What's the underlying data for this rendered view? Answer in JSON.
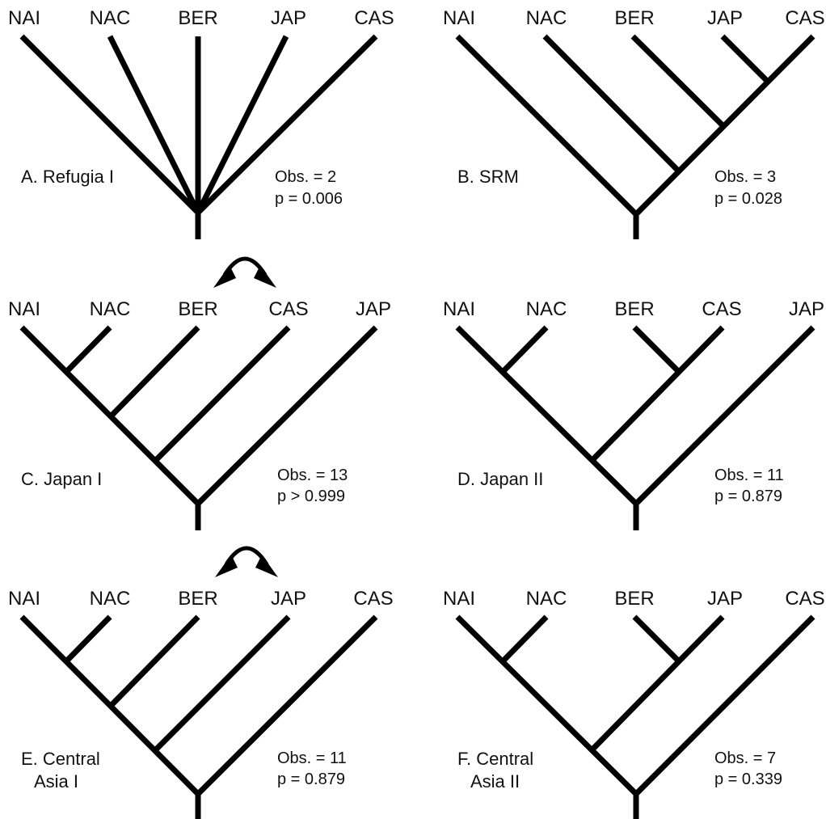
{
  "panels": [
    {
      "id": "A",
      "title_lines": [
        "A. Refugia I"
      ],
      "tips": [
        "NAI",
        "NAC",
        "BER",
        "JAP",
        "CAS"
      ],
      "topology": "star",
      "stats": {
        "obs": "Obs. = 2",
        "p": "p = 0.006"
      },
      "swap_arrow": false
    },
    {
      "id": "B",
      "title_lines": [
        "B. SRM"
      ],
      "tips": [
        "NAI",
        "NAC",
        "BER",
        "JAP",
        "CAS"
      ],
      "topology": "((((JAP,CAS),BER),NAC),NAI)",
      "stats": {
        "obs": "Obs. = 3",
        "p": "p = 0.028"
      },
      "swap_arrow": false
    },
    {
      "id": "C",
      "title_lines": [
        "C. Japan I"
      ],
      "tips": [
        "NAI",
        "NAC",
        "BER",
        "CAS",
        "JAP"
      ],
      "topology": "((((NAI,NAC),BER),CAS),JAP)",
      "stats": {
        "obs": "Obs. = 13",
        "p": "p > 0.999"
      },
      "swap_arrow": true
    },
    {
      "id": "D",
      "title_lines": [
        "D. Japan II"
      ],
      "tips": [
        "NAI",
        "NAC",
        "BER",
        "CAS",
        "JAP"
      ],
      "topology": "(((NAI,NAC),(BER,CAS)),JAP)",
      "stats": {
        "obs": "Obs. = 11",
        "p": "p = 0.879"
      },
      "swap_arrow": false
    },
    {
      "id": "E",
      "title_lines": [
        "E. Central",
        "Asia I"
      ],
      "tips": [
        "NAI",
        "NAC",
        "BER",
        "JAP",
        "CAS"
      ],
      "topology": "((((NAI,NAC),BER),JAP),CAS)",
      "stats": {
        "obs": "Obs. = 11",
        "p": "p = 0.879"
      },
      "swap_arrow": true
    },
    {
      "id": "F",
      "title_lines": [
        "F. Central",
        "Asia II"
      ],
      "tips": [
        "NAI",
        "NAC",
        "BER",
        "JAP",
        "CAS"
      ],
      "topology": "(((NAI,NAC),(BER,JAP)),CAS)",
      "stats": {
        "obs": "Obs. = 7",
        "p": "p = 0.339"
      },
      "swap_arrow": false
    }
  ]
}
